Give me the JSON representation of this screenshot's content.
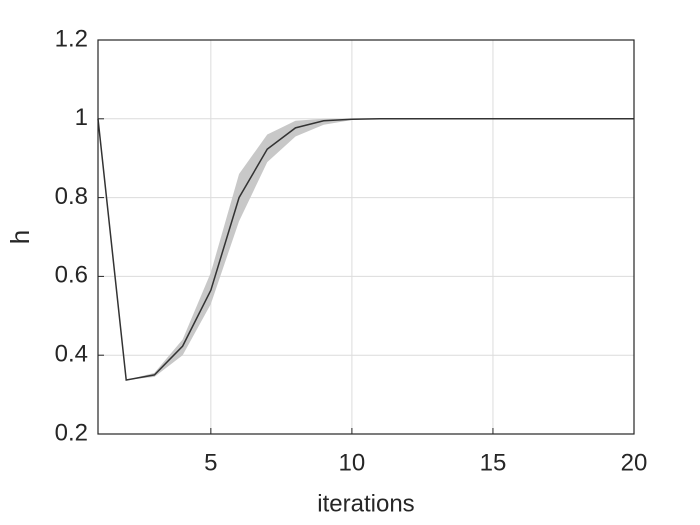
{
  "chart_data": {
    "type": "line",
    "x": [
      1,
      2,
      3,
      4,
      5,
      6,
      7,
      8,
      9,
      10,
      11,
      12,
      13,
      14,
      15,
      16,
      17,
      18,
      19,
      20
    ],
    "values": [
      1.0,
      0.337,
      0.35,
      0.423,
      0.565,
      0.8,
      0.923,
      0.977,
      0.995,
      0.999,
      1,
      1,
      1,
      1,
      1,
      1,
      1,
      1,
      1,
      1
    ],
    "lower": [
      1.0,
      0.337,
      0.345,
      0.4,
      0.53,
      0.74,
      0.89,
      0.955,
      0.985,
      0.997,
      1,
      1,
      1,
      1,
      1,
      1,
      1,
      1,
      1,
      1
    ],
    "upper": [
      1.0,
      0.337,
      0.355,
      0.44,
      0.61,
      0.86,
      0.96,
      0.995,
      1.0,
      1.0,
      1,
      1,
      1,
      1,
      1,
      1,
      1,
      1,
      1,
      1
    ],
    "color": "#333333",
    "band_color": "#c8c8c8",
    "xlim": [
      1,
      20
    ],
    "xticks": [
      5,
      10,
      15,
      20
    ],
    "ylim": [
      0.2,
      1.2
    ],
    "yticks": [
      0.2,
      0.4,
      0.6,
      0.8,
      1,
      1.2
    ],
    "grid": true,
    "xlabel": "iterations",
    "ylabel": "h"
  }
}
